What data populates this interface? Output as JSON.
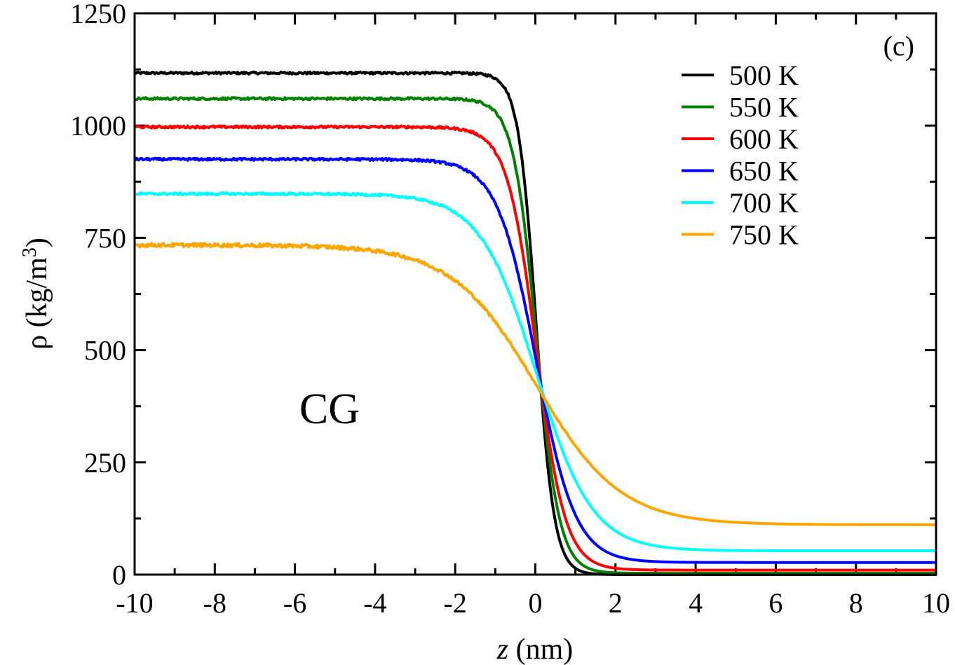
{
  "chart_data": {
    "type": "line",
    "title": "",
    "panel_label": "(c)",
    "annotation": "CG",
    "xlabel_var": "z",
    "xlabel_unit": " (nm)",
    "ylabel_main": "ρ (kg/m",
    "ylabel_sup": "3",
    "ylabel_close": ")",
    "xlim": [
      -10,
      10
    ],
    "ylim": [
      0,
      1250
    ],
    "xticks": [
      -10,
      -8,
      -6,
      -4,
      -2,
      0,
      2,
      4,
      6,
      8,
      10
    ],
    "xtick_labels": [
      "-10",
      "-8",
      "-6",
      "-4",
      "-2",
      "0",
      "2",
      "4",
      "6",
      "8",
      "10"
    ],
    "yticks": [
      0,
      250,
      500,
      750,
      1000,
      1250
    ],
    "ytick_labels": [
      "0",
      "250",
      "500",
      "750",
      "1000",
      "1250"
    ],
    "legend_position": "top-right",
    "grid": false,
    "curve_model": "rho(z) = (liquid + vapor)/2 - (liquid - vapor)/2 * tanh(2 (z - z0) / width)",
    "series": [
      {
        "name": "500 K",
        "color": "#000000",
        "liquid": 1117,
        "vapor": 0,
        "z0": 0.02,
        "width": 0.9,
        "noise": 2.5
      },
      {
        "name": "550 K",
        "color": "#008000",
        "liquid": 1060,
        "vapor": 3,
        "z0": 0.02,
        "width": 1.15,
        "noise": 2.5
      },
      {
        "name": "600 K",
        "color": "#ff0000",
        "liquid": 997,
        "vapor": 10,
        "z0": 0.02,
        "width": 1.45,
        "noise": 2.5
      },
      {
        "name": "650 K",
        "color": "#0000ff",
        "liquid": 925,
        "vapor": 27,
        "z0": 0.02,
        "width": 1.95,
        "noise": 2.5
      },
      {
        "name": "700 K",
        "color": "#00ffff",
        "liquid": 848,
        "vapor": 53,
        "z0": 0.02,
        "width": 2.8,
        "noise": 2.5
      },
      {
        "name": "750 K",
        "color": "#ffa500",
        "liquid": 734,
        "vapor": 111,
        "z0": 0.02,
        "width": 4.2,
        "noise": 4
      }
    ]
  }
}
